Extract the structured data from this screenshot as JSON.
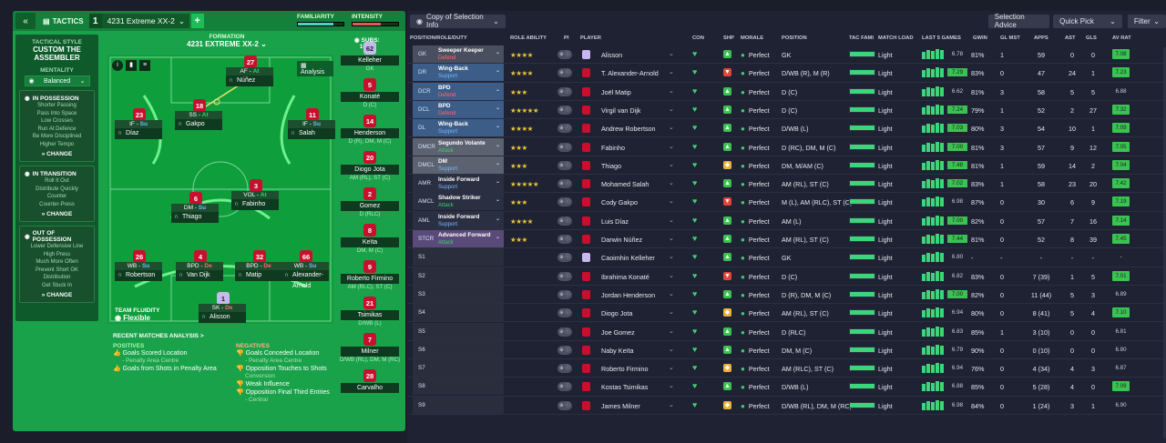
{
  "tactics": {
    "tab_label": "TACTICS",
    "slot_number": "1",
    "formation_select": "4231 Extreme XX-2",
    "familiarity_label": "FAMILIARITY",
    "familiarity_level": 0.78,
    "intensity_label": "INTENSITY",
    "intensity_level": 0.62,
    "formation_label": "FORMATION",
    "formation_title": "4231 EXTREME XX-2",
    "subs_label": "SUBS:",
    "subs_count": "15/15",
    "analysis_label": "Analysis",
    "team_fluidity_label": "TEAM FLUIDITY",
    "team_fluidity_value": "Flexible"
  },
  "sidebar": {
    "tactical_style_label": "TACTICAL STYLE",
    "tactical_style": "CUSTOM THE ASSEMBLER",
    "mentality_label": "MENTALITY",
    "mentality_value": "Balanced",
    "change_label": "CHANGE",
    "in_possession": {
      "title": "IN POSSESSION",
      "lines": [
        "Shorter Passing",
        "Pass Into Space",
        "Low Crosses",
        "Run At Defence",
        "Be More Disciplined",
        "Higher Tempo"
      ]
    },
    "in_transition": {
      "title": "IN TRANSITION",
      "lines": [
        "Roll It Out",
        "Distribute Quickly",
        "Counter",
        "Counter-Press"
      ]
    },
    "out_of_possession": {
      "title": "OUT OF POSSESSION",
      "lines": [
        "Lower Defensive Line",
        "High Press",
        "Much More Often",
        "Prevent Short GK",
        "Distribution",
        "Get Stuck In"
      ]
    }
  },
  "pitch_players": [
    {
      "num": "27",
      "role": "AF",
      "duty": "At",
      "name": "Núñez"
    },
    {
      "num": "23",
      "role": "IF",
      "duty": "Su",
      "name": "Díaz"
    },
    {
      "num": "18",
      "role": "SS",
      "duty": "At",
      "name": "Gakpo"
    },
    {
      "num": "11",
      "role": "IF",
      "duty": "Su",
      "name": "Salah"
    },
    {
      "num": "6",
      "role": "DM",
      "duty": "Su",
      "name": "Thiago"
    },
    {
      "num": "3",
      "role": "VOL",
      "duty": "At",
      "name": "Fabinho"
    },
    {
      "num": "26",
      "role": "WB",
      "duty": "Su",
      "name": "Robertson"
    },
    {
      "num": "4",
      "role": "BPD",
      "duty": "De",
      "name": "Van Dijk"
    },
    {
      "num": "32",
      "role": "BPD",
      "duty": "De",
      "name": "Matip"
    },
    {
      "num": "66",
      "role": "WB",
      "duty": "Su",
      "name": "Alexander-Arnold"
    },
    {
      "num": "1",
      "role": "SK",
      "duty": "De",
      "name": "Alisson"
    }
  ],
  "subs": [
    {
      "num": "62",
      "name": "Kelleher",
      "pos": "GK"
    },
    {
      "num": "5",
      "name": "Konaté",
      "pos": "D (C)"
    },
    {
      "num": "14",
      "name": "Henderson",
      "pos": "D (R), DM, M (C)"
    },
    {
      "num": "20",
      "name": "Diogo Jota",
      "pos": "AM (RL), ST (C)"
    },
    {
      "num": "2",
      "name": "Gomez",
      "pos": "D (RLC)"
    },
    {
      "num": "8",
      "name": "Keïta",
      "pos": "DM, M (C)"
    },
    {
      "num": "9",
      "name": "Roberto Firmino",
      "pos": "AM (RLC), ST (C)"
    },
    {
      "num": "21",
      "name": "Tsimikas",
      "pos": "D/WB (L)"
    },
    {
      "num": "7",
      "name": "Milner",
      "pos": "D/WB (RL), DM, M (RC)"
    },
    {
      "num": "28",
      "name": "Carvalho",
      "pos": ""
    }
  ],
  "recent": {
    "title": "RECENT MATCHES ANALYSIS >",
    "positives_label": "POSITIVES",
    "positives": [
      "Goals Scored Location",
      "- Penalty Area Centre",
      "Goals from Shots in Penalty Area"
    ],
    "negatives_label": "NEGATIVES",
    "negatives": [
      "Goals Conceded Location",
      "- Penalty Area Centre",
      "Opposition Touches to Shots",
      "Conversion",
      "Weak Influence",
      "Opposition Final Third Entries",
      "- Central"
    ]
  },
  "toolbar": {
    "view_select": "Copy of Selection Info",
    "selection_advice": "Selection Advice",
    "quick_pick": "Quick Pick",
    "filter": "Filter"
  },
  "columns": [
    "POSITION/ROLE/DUTY",
    "ROLE ABILITY",
    "PI",
    "PLAYER",
    "CON",
    "SHP",
    "MORALE",
    "POSITION",
    "TAC FAMI",
    "MATCH LOAD",
    "LAST 5 GAMES",
    "GWIN",
    "GL MST",
    "APPS",
    "AST",
    "GLS",
    "AV RAT"
  ],
  "rows": [
    {
      "pos": "GK",
      "role": "Sweeper Keeper",
      "duty": "Defend",
      "stars": "★★★★",
      "name": "Alisson",
      "shp": "up",
      "morale": "Perfect",
      "fpos": "GK",
      "load": "Light",
      "rat": "6.78",
      "gwin": "81%",
      "glmst": "1",
      "apps": "59",
      "ast": "0",
      "gls": "0",
      "av": "7.08"
    },
    {
      "pos": "DR",
      "role": "Wing-Back",
      "duty": "Support",
      "stars": "★★★★",
      "name": "T. Alexander-Arnold",
      "shp": "down",
      "morale": "Perfect",
      "fpos": "D/WB (R), M (R)",
      "load": "Light",
      "rat": "7.29",
      "gwin": "83%",
      "glmst": "0",
      "apps": "47",
      "ast": "24",
      "gls": "1",
      "av": "7.23"
    },
    {
      "pos": "DCR",
      "role": "BPD",
      "duty": "Defend",
      "stars": "★★★",
      "name": "Joël Matip",
      "shp": "up",
      "morale": "Perfect",
      "fpos": "D (C)",
      "load": "Light",
      "rat": "6.62",
      "gwin": "81%",
      "glmst": "3",
      "apps": "58",
      "ast": "5",
      "gls": "5",
      "av": "6.88"
    },
    {
      "pos": "DCL",
      "role": "BPD",
      "duty": "Defend",
      "stars": "★★★★★",
      "name": "Virgil van Dijk",
      "shp": "up",
      "morale": "Perfect",
      "fpos": "D (C)",
      "load": "Light",
      "rat": "7.24",
      "gwin": "79%",
      "glmst": "1",
      "apps": "52",
      "ast": "2",
      "gls": "27",
      "av": "7.32"
    },
    {
      "pos": "DL",
      "role": "Wing-Back",
      "duty": "Support",
      "stars": "★★★★",
      "name": "Andrew Robertson",
      "shp": "up",
      "morale": "Perfect",
      "fpos": "D/WB (L)",
      "load": "Light",
      "rat": "7.03",
      "gwin": "80%",
      "glmst": "3",
      "apps": "54",
      "ast": "10",
      "gls": "1",
      "av": "7.09"
    },
    {
      "pos": "DMCR",
      "role": "Segundo Volante",
      "duty": "Attack",
      "stars": "★★★",
      "name": "Fabinho",
      "shp": "up",
      "morale": "Perfect",
      "fpos": "D (RC), DM, M (C)",
      "load": "Light",
      "rat": "7.00",
      "gwin": "81%",
      "glmst": "3",
      "apps": "57",
      "ast": "9",
      "gls": "12",
      "av": "7.05"
    },
    {
      "pos": "DMCL",
      "role": "DM",
      "duty": "Support",
      "stars": "★★★",
      "name": "Thiago",
      "shp": "mid",
      "morale": "Perfect",
      "fpos": "DM, M/AM (C)",
      "load": "Light",
      "rat": "7.48",
      "gwin": "81%",
      "glmst": "1",
      "apps": "59",
      "ast": "14",
      "gls": "2",
      "av": "7.04"
    },
    {
      "pos": "AMR",
      "role": "Inside Forward",
      "duty": "Support",
      "stars": "★★★★★",
      "name": "Mohamed Salah",
      "shp": "up",
      "morale": "Perfect",
      "fpos": "AM (RL), ST (C)",
      "load": "Light",
      "rat": "7.02",
      "gwin": "83%",
      "glmst": "1",
      "apps": "58",
      "ast": "23",
      "gls": "20",
      "av": "7.42"
    },
    {
      "pos": "AMCL",
      "role": "Shadow Striker",
      "duty": "Attack",
      "stars": "★★★",
      "name": "Cody Gakpo",
      "shp": "down",
      "morale": "Perfect",
      "fpos": "M (L), AM (RLC), ST (C)",
      "load": "Light",
      "rat": "6.98",
      "gwin": "87%",
      "glmst": "0",
      "apps": "30",
      "ast": "6",
      "gls": "9",
      "av": "7.19"
    },
    {
      "pos": "AML",
      "role": "Inside Forward",
      "duty": "Support",
      "stars": "★★★★",
      "name": "Luis Díaz",
      "shp": "up",
      "morale": "Perfect",
      "fpos": "AM (L)",
      "load": "Light",
      "rat": "7.00",
      "gwin": "82%",
      "glmst": "0",
      "apps": "57",
      "ast": "7",
      "gls": "16",
      "av": "7.14"
    },
    {
      "pos": "STCR",
      "role": "Advanced Forward",
      "duty": "Attack",
      "stars": "★★★",
      "name": "Darwin Núñez",
      "shp": "up",
      "morale": "Perfect",
      "fpos": "AM (RL), ST (C)",
      "load": "Light",
      "rat": "7.44",
      "gwin": "81%",
      "glmst": "0",
      "apps": "52",
      "ast": "8",
      "gls": "39",
      "av": "7.45"
    },
    {
      "pos": "S1",
      "role": "",
      "duty": "",
      "stars": "",
      "name": "Caoimhin Kelleher",
      "shp": "up",
      "morale": "Perfect",
      "fpos": "GK",
      "load": "Light",
      "rat": "6.80",
      "gwin": "-",
      "glmst": "-",
      "apps": "-",
      "ast": "-",
      "gls": "-",
      "av": "-"
    },
    {
      "pos": "S2",
      "role": "",
      "duty": "",
      "stars": "",
      "name": "Ibrahima Konaté",
      "shp": "down",
      "morale": "Perfect",
      "fpos": "D (C)",
      "load": "Light",
      "rat": "6.82",
      "gwin": "83%",
      "glmst": "0",
      "apps": "7 (39)",
      "ast": "1",
      "gls": "5",
      "av": "7.01"
    },
    {
      "pos": "S3",
      "role": "",
      "duty": "",
      "stars": "",
      "name": "Jordan Henderson",
      "shp": "up",
      "morale": "Perfect",
      "fpos": "D (R), DM, M (C)",
      "load": "Light",
      "rat": "7.00",
      "gwin": "82%",
      "glmst": "0",
      "apps": "11 (44)",
      "ast": "5",
      "gls": "3",
      "av": "6.89"
    },
    {
      "pos": "S4",
      "role": "",
      "duty": "",
      "stars": "",
      "name": "Diogo Jota",
      "shp": "mid",
      "morale": "Perfect",
      "fpos": "AM (RL), ST (C)",
      "load": "Light",
      "rat": "6.94",
      "gwin": "80%",
      "glmst": "0",
      "apps": "8 (41)",
      "ast": "5",
      "gls": "4",
      "av": "7.10"
    },
    {
      "pos": "S5",
      "role": "",
      "duty": "",
      "stars": "",
      "name": "Joe Gomez",
      "shp": "up",
      "morale": "Perfect",
      "fpos": "D (RLC)",
      "load": "Light",
      "rat": "6.83",
      "gwin": "85%",
      "glmst": "1",
      "apps": "3 (10)",
      "ast": "0",
      "gls": "0",
      "av": "6.81"
    },
    {
      "pos": "S6",
      "role": "",
      "duty": "",
      "stars": "",
      "name": "Naby Keïta",
      "shp": "up",
      "morale": "Perfect",
      "fpos": "DM, M (C)",
      "load": "Light",
      "rat": "6.79",
      "gwin": "90%",
      "glmst": "0",
      "apps": "0 (10)",
      "ast": "0",
      "gls": "0",
      "av": "6.80"
    },
    {
      "pos": "S7",
      "role": "",
      "duty": "",
      "stars": "",
      "name": "Roberto Firmino",
      "shp": "mid",
      "morale": "Perfect",
      "fpos": "AM (RLC), ST (C)",
      "load": "Light",
      "rat": "6.94",
      "gwin": "76%",
      "glmst": "0",
      "apps": "4 (34)",
      "ast": "4",
      "gls": "3",
      "av": "6.87"
    },
    {
      "pos": "S8",
      "role": "",
      "duty": "",
      "stars": "",
      "name": "Kostas Tsimikas",
      "shp": "up",
      "morale": "Perfect",
      "fpos": "D/WB (L)",
      "load": "Light",
      "rat": "6.88",
      "gwin": "85%",
      "glmst": "0",
      "apps": "5 (28)",
      "ast": "4",
      "gls": "0",
      "av": "7.09"
    },
    {
      "pos": "S9",
      "role": "",
      "duty": "",
      "stars": "",
      "name": "James Milner",
      "shp": "mid",
      "morale": "Perfect",
      "fpos": "D/WB (RL), DM, M (RC)",
      "load": "Light",
      "rat": "6.98",
      "gwin": "84%",
      "glmst": "0",
      "apps": "1 (24)",
      "ast": "3",
      "gls": "1",
      "av": "6.90"
    }
  ],
  "colors": {
    "pitch": "#0f9e3c",
    "panel": "#19a24a",
    "defend": "#ff6b6b",
    "support": "#7ab8ff",
    "attack": "#36d46a"
  }
}
